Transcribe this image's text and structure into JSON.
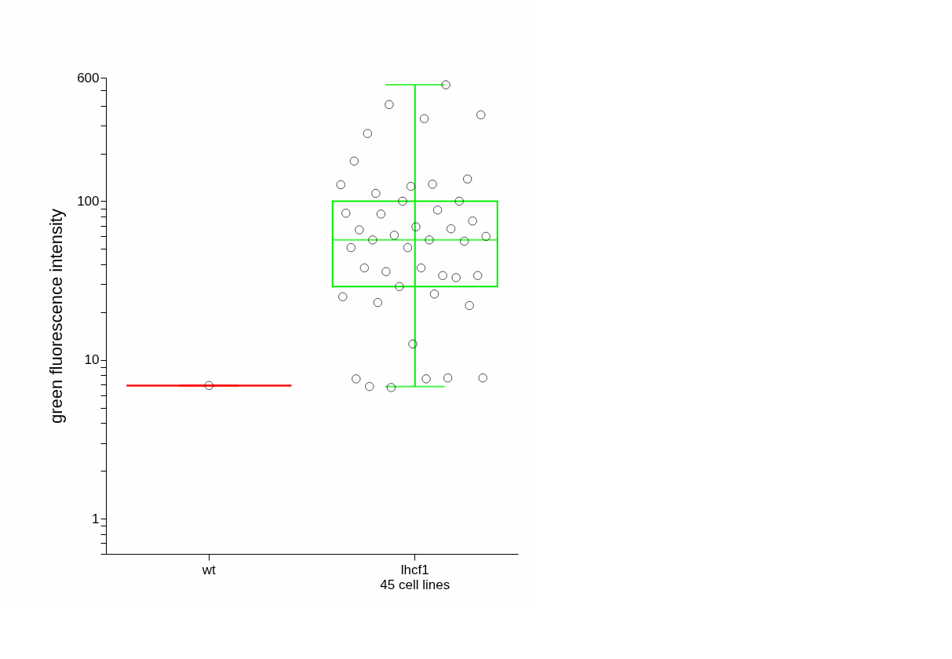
{
  "chart_data": {
    "type": "box",
    "ylabel": "green fluorescence intensity",
    "categories": [
      "wt",
      "lhcf1\n45 cell lines"
    ],
    "log": true,
    "ylim": [
      0.6,
      600
    ],
    "yticks": [
      {
        "value": 0.6,
        "label": null
      },
      {
        "value": 0.7,
        "label": null
      },
      {
        "value": 0.8,
        "label": null
      },
      {
        "value": 0.9,
        "label": null
      },
      1,
      {
        "value": 2,
        "label": null
      },
      {
        "value": 3,
        "label": null
      },
      {
        "value": 4,
        "label": null
      },
      {
        "value": 5,
        "label": null
      },
      {
        "value": 6,
        "label": null
      },
      {
        "value": 7,
        "label": null
      },
      {
        "value": 8,
        "label": null
      },
      {
        "value": 9,
        "label": null
      },
      10,
      {
        "value": 20,
        "label": null
      },
      {
        "value": 30,
        "label": null
      },
      {
        "value": 40,
        "label": null
      },
      {
        "value": 50,
        "label": null
      },
      {
        "value": 60,
        "label": null
      },
      {
        "value": 70,
        "label": null
      },
      {
        "value": 80,
        "label": null
      },
      {
        "value": 90,
        "label": null
      },
      100,
      {
        "value": 200,
        "label": null
      },
      {
        "value": 300,
        "label": null
      },
      {
        "value": 400,
        "label": null
      },
      {
        "value": 500,
        "label": null
      },
      600
    ],
    "grid": false,
    "legend": false,
    "colors": [
      "#ff0000",
      "#00ee00"
    ],
    "boxes": [
      {
        "low": 6.9,
        "q1": 6.9,
        "median": 6.9,
        "q3": 6.9,
        "high": 6.9
      },
      {
        "low": 6.8,
        "q1": 29,
        "median": 57,
        "q3": 100,
        "high": 541
      }
    ],
    "series": [
      {
        "type": "scatter",
        "color": "#000000",
        "marker": "circle",
        "x": [
          "wt",
          "lhcf1\n45 cell lines",
          "lhcf1\n45 cell lines",
          "lhcf1\n45 cell lines",
          "lhcf1\n45 cell lines",
          "lhcf1\n45 cell lines",
          "lhcf1\n45 cell lines",
          "lhcf1\n45 cell lines",
          "lhcf1\n45 cell lines",
          "lhcf1\n45 cell lines",
          "lhcf1\n45 cell lines",
          "lhcf1\n45 cell lines",
          "lhcf1\n45 cell lines",
          "lhcf1\n45 cell lines",
          "lhcf1\n45 cell lines",
          "lhcf1\n45 cell lines",
          "lhcf1\n45 cell lines",
          "lhcf1\n45 cell lines",
          "lhcf1\n45 cell lines",
          "lhcf1\n45 cell lines",
          "lhcf1\n45 cell lines",
          "lhcf1\n45 cell lines",
          "lhcf1\n45 cell lines",
          "lhcf1\n45 cell lines",
          "lhcf1\n45 cell lines",
          "lhcf1\n45 cell lines",
          "lhcf1\n45 cell lines",
          "lhcf1\n45 cell lines",
          "lhcf1\n45 cell lines",
          "lhcf1\n45 cell lines",
          "lhcf1\n45 cell lines",
          "lhcf1\n45 cell lines",
          "lhcf1\n45 cell lines",
          "lhcf1\n45 cell lines",
          "lhcf1\n45 cell lines",
          "lhcf1\n45 cell lines",
          "lhcf1\n45 cell lines",
          "lhcf1\n45 cell lines",
          "lhcf1\n45 cell lines",
          "lhcf1\n45 cell lines",
          "lhcf1\n45 cell lines",
          "lhcf1\n45 cell lines",
          "lhcf1\n45 cell lines",
          "lhcf1\n45 cell lines",
          "lhcf1\n45 cell lines",
          "lhcf1\n45 cell lines"
        ],
        "values": [
          6.9,
          127,
          128,
          112,
          138,
          124,
          179,
          541,
          406,
          350,
          331,
          267,
          100,
          100,
          84,
          88,
          83,
          75,
          69,
          66,
          67,
          61,
          60,
          57,
          57,
          56,
          51,
          51,
          34,
          36,
          34,
          38,
          38,
          33,
          29,
          25,
          26,
          23,
          22,
          12.6,
          7.6,
          7.7,
          6.7,
          7.7,
          7.6,
          6.8
        ]
      }
    ]
  }
}
